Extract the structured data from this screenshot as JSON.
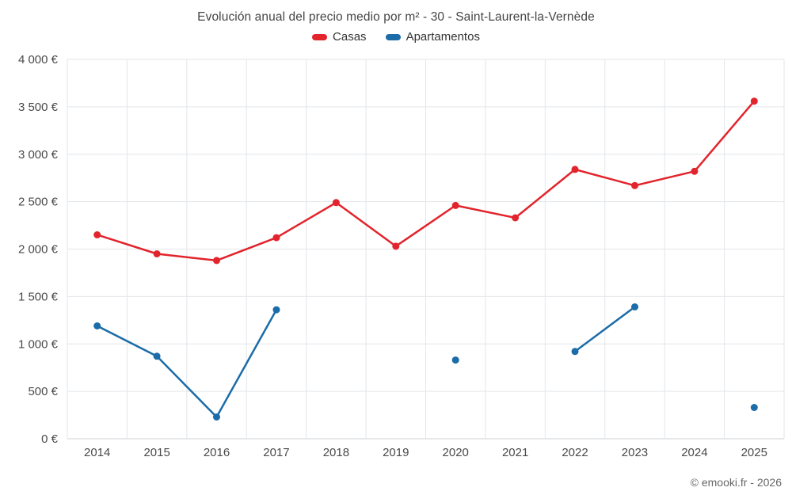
{
  "title": "Evolución anual del precio medio por m² - 30 - Saint-Laurent-la-Vernède",
  "footer": "© emooki.fr - 2026",
  "chart_data": {
    "type": "line",
    "title": "Evolución anual del precio medio por m² - 30 - Saint-Laurent-la-Vernède",
    "x": [
      2014,
      2015,
      2016,
      2017,
      2018,
      2019,
      2020,
      2021,
      2022,
      2023,
      2024,
      2025
    ],
    "series": [
      {
        "name": "Casas",
        "color": "#e2242c",
        "values": [
          2150,
          1950,
          1880,
          2120,
          2490,
          2030,
          2460,
          2330,
          2840,
          2670,
          2820,
          3560
        ]
      },
      {
        "name": "Apartamentos",
        "color": "#1b6ca8",
        "values": [
          1190,
          870,
          230,
          1360,
          null,
          null,
          830,
          null,
          920,
          1390,
          null,
          330
        ]
      }
    ],
    "ylim": [
      0,
      4000
    ],
    "y_ticks": [
      {
        "value": 0,
        "label": "0 €"
      },
      {
        "value": 500,
        "label": "500 €"
      },
      {
        "value": 1000,
        "label": "1 000 €"
      },
      {
        "value": 1500,
        "label": "1 500 €"
      },
      {
        "value": 2000,
        "label": "2 000 €"
      },
      {
        "value": 2500,
        "label": "2 500 €"
      },
      {
        "value": 3000,
        "label": "3 000 €"
      },
      {
        "value": 3500,
        "label": "3 500 €"
      },
      {
        "value": 4000,
        "label": "4 000 €"
      }
    ],
    "grid": true,
    "legend_position": "top",
    "ylabel": "",
    "xlabel": ""
  }
}
